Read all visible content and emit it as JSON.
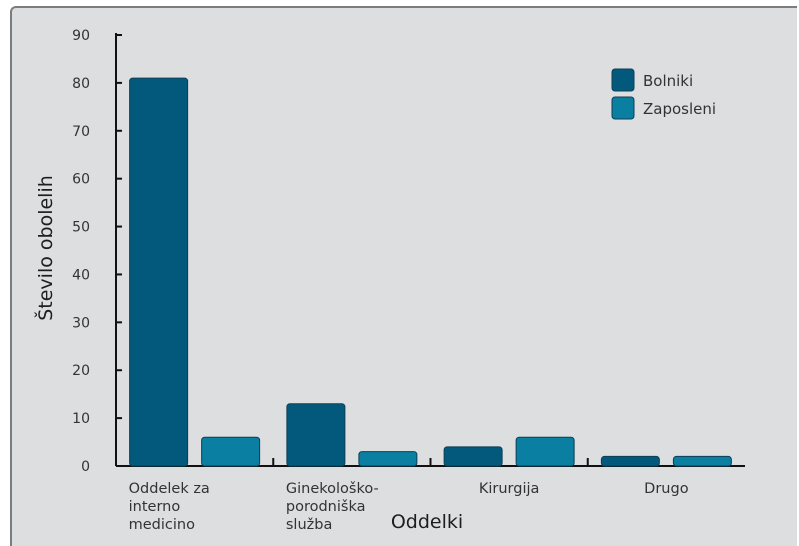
{
  "chart_data": {
    "type": "bar",
    "xlabel": "Oddelki",
    "ylabel": "Število obolelih",
    "ylim": [
      0,
      90
    ],
    "yticks": [
      "0",
      "10",
      "20",
      "30",
      "40",
      "50",
      "60",
      "70",
      "80",
      "90"
    ],
    "categories": [
      [
        "Oddelek za",
        "interno",
        "medicino"
      ],
      [
        "Ginekološko-",
        "porodniška",
        "služba"
      ],
      [
        "Kirurgija"
      ],
      [
        "Drugo"
      ]
    ],
    "series": [
      {
        "name": "Bolniki",
        "color": "#02597b",
        "values": [
          81,
          13,
          4,
          2
        ]
      },
      {
        "name": "Zaposleni",
        "color": "#0a7fa1",
        "values": [
          6,
          3,
          6,
          2
        ]
      }
    ],
    "legend_position": "top-right",
    "grid": false
  }
}
